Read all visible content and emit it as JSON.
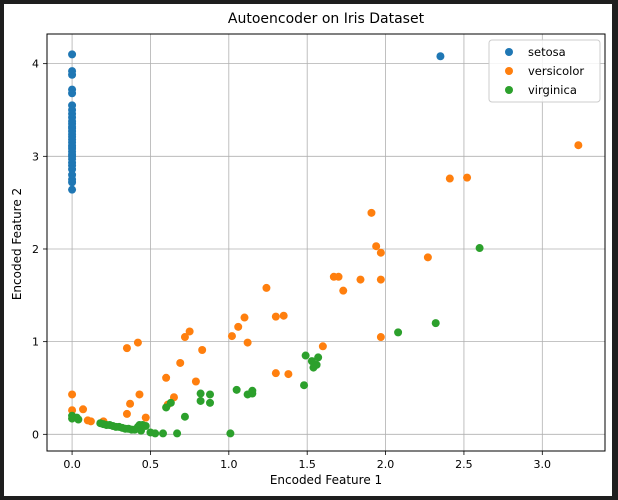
{
  "chart_data": {
    "type": "scatter",
    "title": "Autoencoder on Iris Dataset",
    "xlabel": "Encoded Feature 1",
    "ylabel": "Encoded Feature 2",
    "xlim": [
      -0.16,
      3.4
    ],
    "ylim": [
      -0.18,
      4.32
    ],
    "xticks": [
      0.0,
      0.5,
      1.0,
      1.5,
      2.0,
      2.5,
      3.0
    ],
    "xtick_labels": [
      "0.0",
      "0.5",
      "1.0",
      "1.5",
      "2.0",
      "2.5",
      "3.0"
    ],
    "yticks": [
      0,
      1,
      2,
      3,
      4
    ],
    "ytick_labels": [
      "0",
      "1",
      "2",
      "3",
      "4"
    ],
    "grid": true,
    "legend_position": "top-right",
    "series": [
      {
        "name": "setosa",
        "color": "#1f77b4",
        "points": [
          [
            0,
            4.1
          ],
          [
            0,
            3.92
          ],
          [
            0,
            3.88
          ],
          [
            0,
            3.72
          ],
          [
            0,
            3.68
          ],
          [
            0,
            3.55
          ],
          [
            0,
            3.5
          ],
          [
            0,
            3.46
          ],
          [
            0,
            3.42
          ],
          [
            0,
            3.38
          ],
          [
            0,
            3.35
          ],
          [
            0,
            3.32
          ],
          [
            0,
            3.3
          ],
          [
            0,
            3.27
          ],
          [
            0,
            3.24
          ],
          [
            0,
            3.21
          ],
          [
            0,
            3.18
          ],
          [
            0,
            3.15
          ],
          [
            0,
            3.12
          ],
          [
            0,
            3.1
          ],
          [
            0,
            3.08
          ],
          [
            0,
            3.05
          ],
          [
            0,
            3.02
          ],
          [
            0,
            3.0
          ],
          [
            0,
            2.97
          ],
          [
            0,
            2.93
          ],
          [
            0,
            2.9
          ],
          [
            0,
            2.86
          ],
          [
            0,
            2.8
          ],
          [
            0,
            2.75
          ],
          [
            0,
            2.72
          ],
          [
            0,
            2.64
          ],
          [
            2.35,
            4.08
          ]
        ]
      },
      {
        "name": "versicolor",
        "color": "#ff7f0e",
        "points": [
          [
            0,
            0.43
          ],
          [
            0,
            0.26
          ],
          [
            0.07,
            0.27
          ],
          [
            0.1,
            0.15
          ],
          [
            0.12,
            0.14
          ],
          [
            0.2,
            0.14
          ],
          [
            0.35,
            0.93
          ],
          [
            0.35,
            0.22
          ],
          [
            0.37,
            0.33
          ],
          [
            0.42,
            0.99
          ],
          [
            0.43,
            0.43
          ],
          [
            0.47,
            0.18
          ],
          [
            0.6,
            0.61
          ],
          [
            0.61,
            0.32
          ],
          [
            0.65,
            0.4
          ],
          [
            0.69,
            0.77
          ],
          [
            0.72,
            1.05
          ],
          [
            0.75,
            1.11
          ],
          [
            0.79,
            0.57
          ],
          [
            0.83,
            0.91
          ],
          [
            1.02,
            1.06
          ],
          [
            1.06,
            1.16
          ],
          [
            1.1,
            1.26
          ],
          [
            1.12,
            0.99
          ],
          [
            1.24,
            1.58
          ],
          [
            1.3,
            1.27
          ],
          [
            1.3,
            0.66
          ],
          [
            1.35,
            1.28
          ],
          [
            1.38,
            0.65
          ],
          [
            1.6,
            0.95
          ],
          [
            1.67,
            1.7
          ],
          [
            1.7,
            1.7
          ],
          [
            1.73,
            1.55
          ],
          [
            1.84,
            1.67
          ],
          [
            1.91,
            2.39
          ],
          [
            1.94,
            2.03
          ],
          [
            1.97,
            1.96
          ],
          [
            1.97,
            1.67
          ],
          [
            1.97,
            1.05
          ],
          [
            2.27,
            1.91
          ],
          [
            2.41,
            2.76
          ],
          [
            2.52,
            2.77
          ],
          [
            3.23,
            3.12
          ]
        ]
      },
      {
        "name": "virginica",
        "color": "#2ca02c",
        "points": [
          [
            0,
            0.2
          ],
          [
            0,
            0.17
          ],
          [
            0.03,
            0.18
          ],
          [
            0.04,
            0.16
          ],
          [
            0.18,
            0.12
          ],
          [
            0.2,
            0.11
          ],
          [
            0.22,
            0.1
          ],
          [
            0.24,
            0.1
          ],
          [
            0.26,
            0.09
          ],
          [
            0.28,
            0.08
          ],
          [
            0.3,
            0.08
          ],
          [
            0.32,
            0.07
          ],
          [
            0.34,
            0.06
          ],
          [
            0.36,
            0.06
          ],
          [
            0.38,
            0.05
          ],
          [
            0.4,
            0.05
          ],
          [
            0.42,
            0.08
          ],
          [
            0.43,
            0.1
          ],
          [
            0.44,
            0.04
          ],
          [
            0.45,
            0.1
          ],
          [
            0.47,
            0.09
          ],
          [
            0.5,
            0.02
          ],
          [
            0.53,
            0.01
          ],
          [
            0.58,
            0.01
          ],
          [
            0.6,
            0.29
          ],
          [
            0.63,
            0.34
          ],
          [
            0.67,
            0.01
          ],
          [
            0.72,
            0.19
          ],
          [
            0.82,
            0.44
          ],
          [
            0.82,
            0.36
          ],
          [
            0.88,
            0.43
          ],
          [
            0.88,
            0.34
          ],
          [
            1.01,
            0.01
          ],
          [
            1.05,
            0.48
          ],
          [
            1.12,
            0.43
          ],
          [
            1.15,
            0.44
          ],
          [
            1.15,
            0.47
          ],
          [
            1.48,
            0.53
          ],
          [
            1.49,
            0.85
          ],
          [
            1.53,
            0.79
          ],
          [
            1.54,
            0.72
          ],
          [
            1.56,
            0.75
          ],
          [
            1.57,
            0.83
          ],
          [
            2.08,
            1.1
          ],
          [
            2.32,
            1.2
          ],
          [
            2.6,
            2.01
          ]
        ]
      }
    ]
  }
}
